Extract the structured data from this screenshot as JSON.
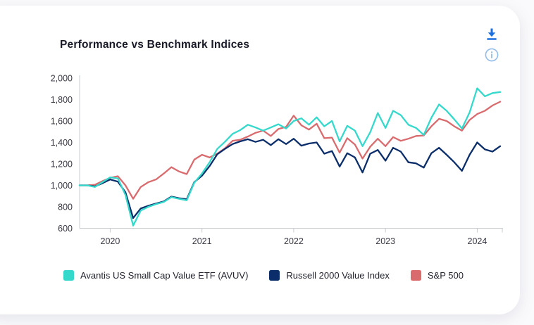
{
  "card": {
    "title": "Performance vs Benchmark Indices",
    "toolbar": {
      "icons": [
        {
          "name": "download-icon",
          "color": "#1B6FE0"
        },
        {
          "name": "info-icon",
          "color": "#92BCE9"
        }
      ]
    }
  },
  "chart_data": {
    "type": "line",
    "title": "Performance vs Benchmark Indices",
    "x_axis": "monthly, Aug 2019 - Mar 2024",
    "x_tick_labels": [
      "2020",
      "2021",
      "2022",
      "2023",
      "2024"
    ],
    "x_tick_indices": [
      4,
      16,
      28,
      40,
      52
    ],
    "y_ticks": [
      600,
      800,
      1000,
      1200,
      1400,
      1600,
      1800,
      2000
    ],
    "y_tick_labels": [
      "600",
      "800",
      "1,000",
      "1,200",
      "1,400",
      "1,600",
      "1,800",
      "2,000"
    ],
    "ylim": [
      600,
      2000
    ],
    "grid": false,
    "legend_position": "bottom",
    "series": [
      {
        "name": "Avantis US Small Cap Value ETF (AVUV)",
        "color": "#35D9CC",
        "values": [
          1000,
          1000,
          985,
          1030,
          1075,
          1065,
          910,
          625,
          765,
          800,
          825,
          845,
          890,
          875,
          860,
          1025,
          1110,
          1215,
          1340,
          1405,
          1480,
          1515,
          1565,
          1540,
          1510,
          1540,
          1570,
          1530,
          1600,
          1625,
          1565,
          1635,
          1550,
          1600,
          1410,
          1555,
          1510,
          1365,
          1495,
          1675,
          1535,
          1695,
          1655,
          1565,
          1535,
          1470,
          1630,
          1755,
          1695,
          1615,
          1530,
          1680,
          1905,
          1830,
          1860,
          1870
        ]
      },
      {
        "name": "Russell 2000 Value Index",
        "color": "#0B2E6B",
        "values": [
          1000,
          1000,
          990,
          1020,
          1055,
          1035,
          935,
          695,
          785,
          810,
          830,
          850,
          895,
          880,
          870,
          1030,
          1090,
          1180,
          1290,
          1340,
          1385,
          1410,
          1430,
          1405,
          1425,
          1375,
          1430,
          1385,
          1435,
          1370,
          1390,
          1400,
          1295,
          1320,
          1175,
          1300,
          1260,
          1120,
          1295,
          1330,
          1230,
          1350,
          1315,
          1215,
          1205,
          1165,
          1300,
          1350,
          1285,
          1215,
          1135,
          1285,
          1400,
          1335,
          1315,
          1365
        ]
      },
      {
        "name": "S&P 500",
        "color": "#D96B6E",
        "values": [
          1000,
          1000,
          1005,
          1040,
          1070,
          1085,
          1000,
          875,
          985,
          1030,
          1055,
          1110,
          1170,
          1130,
          1105,
          1240,
          1285,
          1260,
          1295,
          1345,
          1415,
          1425,
          1455,
          1490,
          1510,
          1460,
          1525,
          1545,
          1650,
          1560,
          1520,
          1575,
          1440,
          1445,
          1305,
          1440,
          1380,
          1250,
          1360,
          1435,
          1365,
          1450,
          1415,
          1435,
          1460,
          1465,
          1550,
          1620,
          1600,
          1550,
          1510,
          1610,
          1665,
          1695,
          1745,
          1780
        ]
      }
    ],
    "axis_color": "#C9CCD1",
    "tick_text_color": "#383945"
  }
}
